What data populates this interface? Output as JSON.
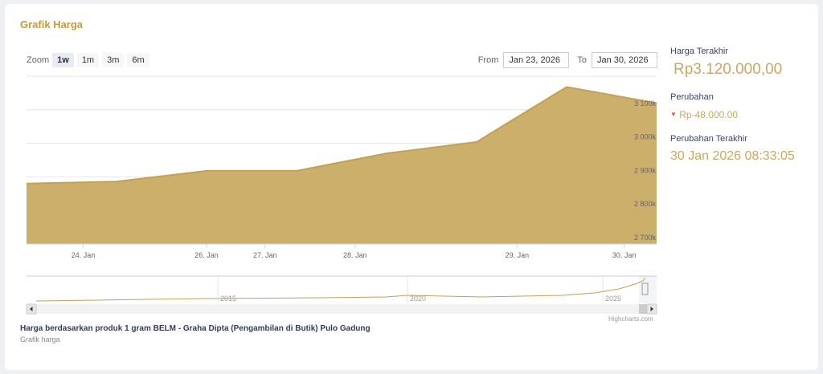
{
  "title": "Grafik Harga",
  "zoom": {
    "label": "Zoom",
    "buttons": [
      "1w",
      "1m",
      "3m",
      "6m"
    ],
    "active": "1w"
  },
  "range": {
    "from_label": "From",
    "from": "Jan 23, 2026",
    "to_label": "To",
    "to": "Jan 30, 2026"
  },
  "side": {
    "last_price_label": "Harga Terakhir",
    "last_price": "Rp3.120.000,00",
    "change_label": "Perubahan",
    "change": "Rp-48,000.00",
    "change_icon": "triangle-down-icon",
    "last_change_label": "Perubahan Terakhir",
    "last_change": "30 Jan 2026 08:33:05"
  },
  "caption": "Harga berdasarkan produk 1 gram BELM - Graha Dipta (Pengambilan di Butik) Pulo Gadung",
  "subcaption": "Grafik harga",
  "credit": "Highcharts.com",
  "colors": {
    "fill": "#cdaf6c",
    "line": "#c2a056",
    "title": "#c49a3c",
    "label": "#3b4566",
    "down": "#d9534f"
  },
  "chart_data": {
    "type": "area",
    "ylim": [
      2700000,
      3200000
    ],
    "yticks": [
      "2 700k",
      "2 800k",
      "2 900k",
      "3 000k",
      "3 100k"
    ],
    "ytick_values": [
      2700000,
      2800000,
      2900000,
      3000000,
      3100000
    ],
    "xticks": [
      "24. Jan",
      "26. Jan",
      "27. Jan",
      "28. Jan",
      "29. Jan",
      "30. Jan"
    ],
    "values": [
      2880000,
      2886000,
      2918000,
      2918000,
      2970000,
      3004000,
      3168000,
      3120000
    ],
    "grid": true,
    "navigator": {
      "xticks": [
        "2015",
        "2020",
        "2025"
      ]
    }
  }
}
